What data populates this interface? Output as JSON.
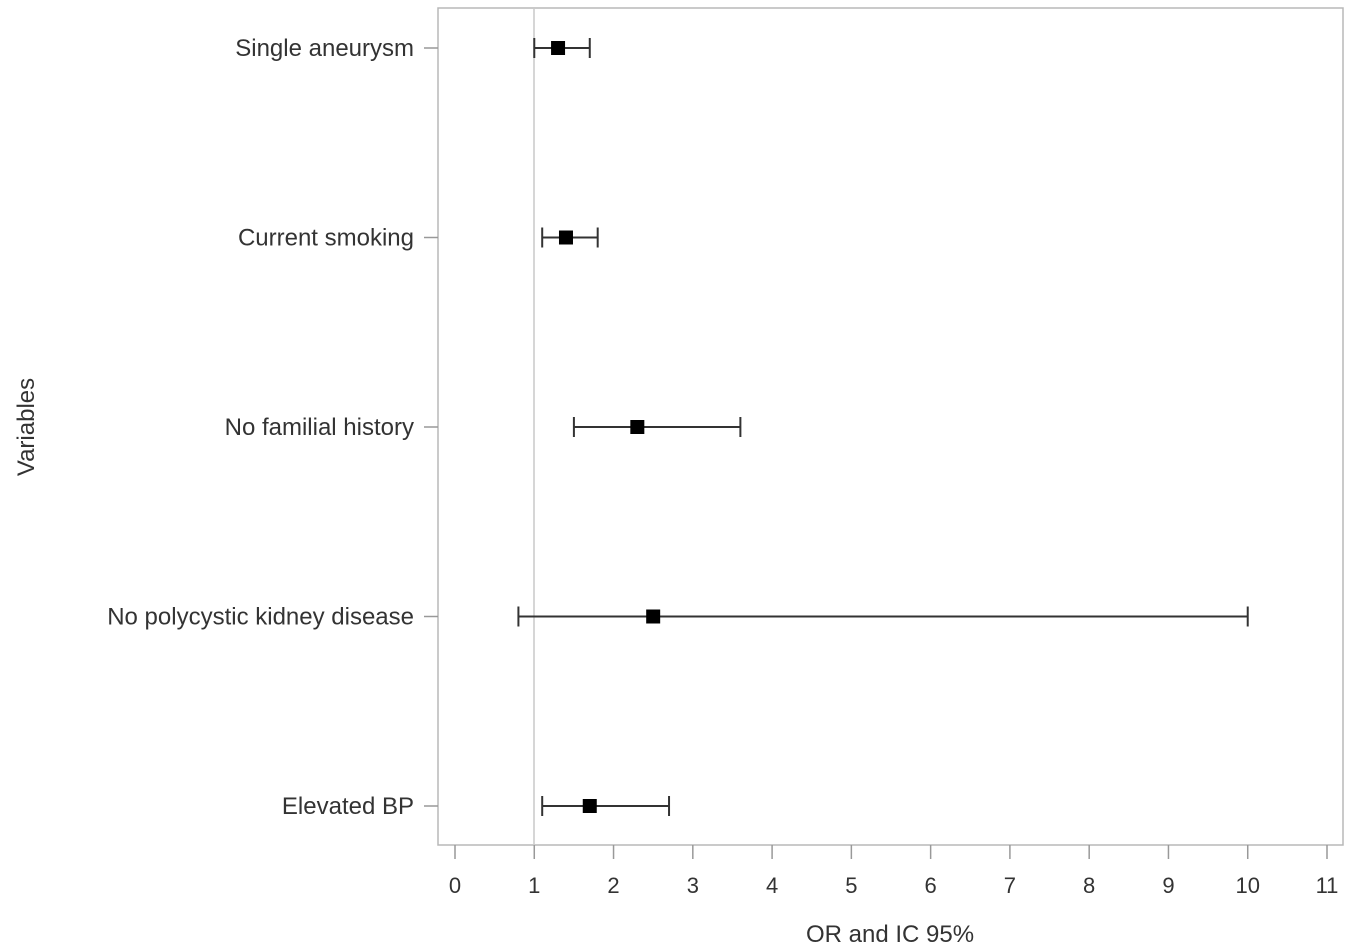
{
  "chart_data": {
    "type": "forest",
    "title": "",
    "xlabel": "OR and IC 95%",
    "ylabel": "Variables",
    "xlim": [
      -0.2,
      11.2
    ],
    "xticks": [
      0,
      1,
      2,
      3,
      4,
      5,
      6,
      7,
      8,
      9,
      10,
      11
    ],
    "reference_line": 1,
    "grid": false,
    "legend": "none",
    "categories": [
      "Single aneurysm",
      "Current smoking",
      "No familial history",
      "No polycystic kidney disease",
      "Elevated BP"
    ],
    "series": [
      {
        "estimate": [
          1.3,
          1.4,
          2.3,
          2.5,
          1.7
        ],
        "lower": [
          1.0,
          1.1,
          1.5,
          0.8,
          1.1
        ],
        "upper": [
          1.7,
          1.8,
          3.6,
          10.0,
          2.7
        ]
      }
    ],
    "colors": {
      "marker": "#000000",
      "error_bar": "#333333",
      "frame": "#b8b8b8",
      "reference_line": "#c8c8c8",
      "text": "#333333"
    }
  }
}
